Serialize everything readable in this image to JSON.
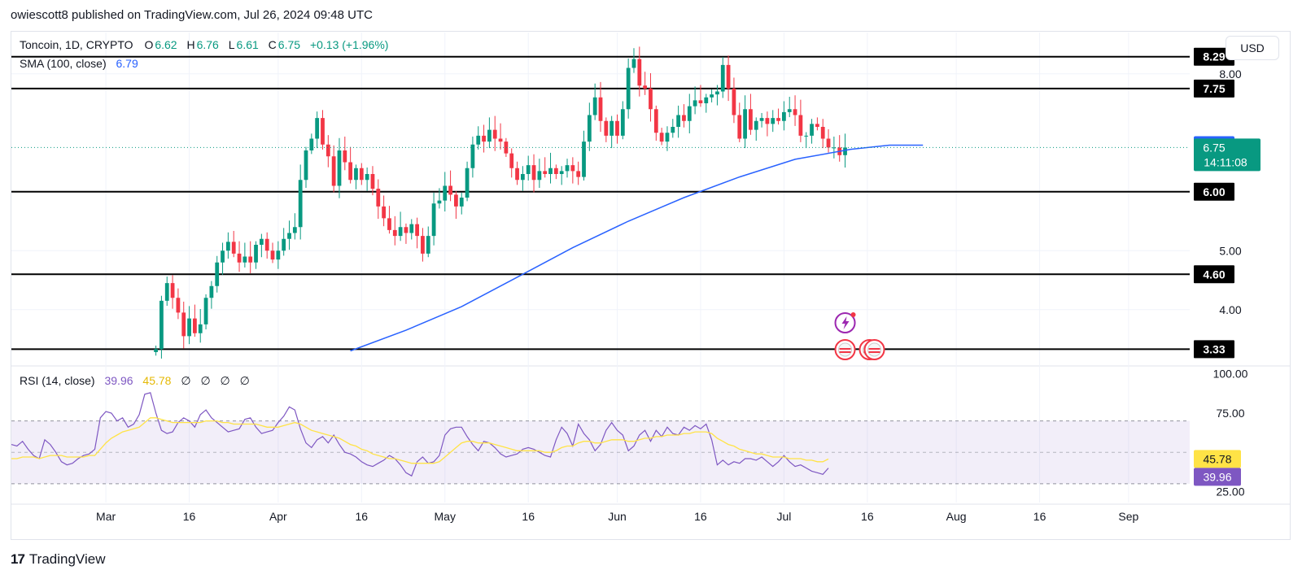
{
  "header": {
    "publish_line": "owiescott8 published on TradingView.com, Jul 26, 2024 09:48 UTC"
  },
  "legend": {
    "symbol": "Toncoin, 1D, CRYPTO",
    "o_label": "O",
    "o_value": "6.62",
    "h_label": "H",
    "h_value": "6.76",
    "l_label": "L",
    "l_value": "6.61",
    "c_label": "C",
    "c_value": "6.75",
    "change": "+0.13 (+1.96%)",
    "sma_label": "SMA (100, close)",
    "sma_value": "6.79",
    "rsi_label": "RSI (14, close)",
    "rsi_value": "39.96",
    "rsi_ma_value": "45.78",
    "rsi_empty": [
      "∅",
      "∅",
      "∅",
      "∅"
    ]
  },
  "currency_button": "USD",
  "footer": {
    "brand_logo": "17",
    "brand_name": "TradingView"
  },
  "colors": {
    "up": "#089981",
    "down": "#f23645",
    "sma": "#2962ff",
    "rsi": "#7e57c2",
    "rsi_ma": "#ffe346",
    "level": "#000000",
    "grid": "#f0f3fa"
  },
  "chart_data": [
    {
      "type": "candlestick",
      "title": "Toncoin, 1D, CRYPTO",
      "x_range": [
        "2024-02-13",
        "2024-09-12"
      ],
      "x_ticks": [
        {
          "date": "2024-03-01",
          "label": "Mar"
        },
        {
          "date": "2024-03-16",
          "label": "16"
        },
        {
          "date": "2024-04-01",
          "label": "Apr"
        },
        {
          "date": "2024-04-16",
          "label": "16"
        },
        {
          "date": "2024-05-01",
          "label": "May"
        },
        {
          "date": "2024-05-16",
          "label": "16"
        },
        {
          "date": "2024-06-01",
          "label": "Jun"
        },
        {
          "date": "2024-06-16",
          "label": "16"
        },
        {
          "date": "2024-07-01",
          "label": "Jul"
        },
        {
          "date": "2024-07-16",
          "label": "16"
        },
        {
          "date": "2024-08-01",
          "label": "Aug"
        },
        {
          "date": "2024-08-16",
          "label": "16"
        },
        {
          "date": "2024-09-01",
          "label": "Sep"
        }
      ],
      "y_ticks": [
        "4.00",
        "5.00",
        "8.00"
      ],
      "ylim": [
        3.1,
        8.7
      ],
      "horizontal_levels": [
        "8.29",
        "7.75",
        "6.00",
        "4.60",
        "3.33"
      ],
      "price_labels": {
        "sma": "6.79",
        "last": "6.75",
        "countdown": "14:11:08"
      },
      "start_date": "2024-03-10",
      "closes": [
        3.33,
        4.15,
        4.45,
        4.2,
        3.95,
        3.55,
        3.85,
        3.6,
        3.75,
        4.2,
        4.4,
        4.8,
        5.0,
        5.15,
        4.95,
        4.8,
        4.9,
        4.8,
        5.1,
        5.2,
        5.0,
        4.85,
        5.0,
        5.2,
        5.3,
        5.4,
        6.2,
        6.7,
        6.9,
        7.25,
        6.8,
        6.6,
        6.1,
        6.7,
        6.5,
        6.2,
        6.4,
        6.2,
        6.3,
        6.05,
        5.75,
        5.55,
        5.35,
        5.25,
        5.4,
        5.3,
        5.45,
        5.25,
        4.95,
        5.25,
        5.8,
        5.85,
        6.1,
        5.95,
        5.75,
        5.9,
        6.4,
        6.8,
        6.95,
        6.85,
        7.05,
        6.9,
        6.85,
        6.65,
        6.4,
        6.2,
        6.3,
        6.45,
        6.2,
        6.35,
        6.3,
        6.4,
        6.3,
        6.35,
        6.45,
        6.35,
        6.25,
        6.85,
        7.3,
        7.6,
        7.2,
        6.95,
        7.2,
        6.95,
        7.4,
        8.1,
        8.25,
        7.8,
        7.75,
        7.4,
        7.0,
        6.85,
        7.0,
        7.1,
        7.3,
        7.2,
        7.45,
        7.55,
        7.5,
        7.6,
        7.65,
        7.7,
        8.15,
        7.75,
        7.3,
        6.9,
        7.4,
        7.05,
        7.2,
        7.25,
        7.15,
        7.25,
        7.2,
        7.35,
        7.4,
        7.3,
        6.95,
        6.95,
        7.15,
        7.1,
        6.9,
        6.75,
        6.75,
        6.62,
        6.75
      ]
    },
    {
      "type": "line",
      "title": "SMA (100, close)",
      "x": [
        "2024-04-14",
        "2024-04-24",
        "2024-05-04",
        "2024-05-14",
        "2024-05-24",
        "2024-06-03",
        "2024-06-13",
        "2024-06-23",
        "2024-07-03",
        "2024-07-13",
        "2024-07-20",
        "2024-07-26"
      ],
      "series": [
        {
          "name": "SMA (100, close)",
          "values": [
            3.3,
            3.65,
            4.05,
            4.55,
            5.05,
            5.5,
            5.9,
            6.25,
            6.55,
            6.72,
            6.79,
            6.79
          ]
        }
      ]
    },
    {
      "type": "line",
      "title": "RSI (14, close)",
      "ylim": [
        18,
        104
      ],
      "y_ticks": [
        "100.00",
        "75.00",
        "25.00"
      ],
      "bands": {
        "upper": 70,
        "middle": 50,
        "lower": 30
      },
      "value_labels": {
        "rsi": "39.96",
        "rsi_ma": "45.78"
      },
      "start_date": "2024-02-13",
      "series": [
        {
          "name": "RSI",
          "values": [
            55,
            54,
            57,
            52,
            48,
            46,
            58,
            55,
            50,
            44,
            42,
            43,
            46,
            48,
            49,
            52,
            72,
            76,
            75,
            70,
            72,
            66,
            68,
            74,
            87,
            88,
            75,
            64,
            62,
            63,
            69,
            72,
            70,
            66,
            74,
            77,
            72,
            69,
            66,
            63,
            64,
            65,
            71,
            72,
            66,
            62,
            63,
            64,
            69,
            73,
            79,
            77,
            65,
            56,
            53,
            58,
            60,
            56,
            61,
            55,
            50,
            49,
            47,
            44,
            42,
            41,
            43,
            45,
            48,
            46,
            42,
            37,
            35,
            44,
            47,
            43,
            44,
            48,
            61,
            65,
            66,
            66,
            60,
            55,
            51,
            57,
            56,
            53,
            49,
            47,
            48,
            49,
            52,
            53,
            52,
            50,
            48,
            47,
            58,
            66,
            62,
            54,
            68,
            62,
            58,
            51,
            55,
            64,
            69,
            64,
            61,
            51,
            54,
            61,
            64,
            57,
            64,
            60,
            66,
            62,
            61,
            66,
            64,
            67,
            65,
            68,
            58,
            42,
            45,
            42,
            44,
            43,
            46,
            46,
            45,
            47,
            44,
            41,
            44,
            48,
            44,
            41,
            42,
            40,
            38,
            37,
            36,
            39.96
          ]
        },
        {
          "name": "RSI-based MA",
          "values": [
            46,
            46,
            47,
            47,
            47,
            46,
            47,
            48,
            48,
            48,
            47,
            47,
            47,
            47,
            48,
            48,
            52,
            56,
            59,
            61,
            63,
            64,
            65,
            66,
            69,
            72,
            72,
            71,
            70,
            69,
            69,
            69,
            69,
            69,
            69,
            70,
            70,
            70,
            69,
            69,
            68,
            68,
            68,
            68,
            68,
            67,
            66,
            66,
            66,
            67,
            68,
            69,
            68,
            66,
            64,
            63,
            62,
            61,
            60,
            59,
            57,
            55,
            54,
            52,
            51,
            49,
            48,
            47,
            46,
            46,
            45,
            44,
            43,
            43,
            43,
            43,
            43,
            44,
            47,
            50,
            53,
            56,
            57,
            57,
            56,
            56,
            56,
            55,
            54,
            53,
            52,
            51,
            51,
            51,
            51,
            51,
            50,
            50,
            51,
            53,
            54,
            54,
            56,
            57,
            57,
            56,
            56,
            57,
            58,
            58,
            58,
            57,
            57,
            58,
            59,
            59,
            60,
            60,
            61,
            61,
            61,
            62,
            62,
            63,
            63,
            63,
            62,
            59,
            57,
            55,
            54,
            52,
            51,
            50,
            49,
            49,
            48,
            47,
            47,
            47,
            46,
            46,
            46,
            45,
            45,
            44,
            44,
            45.78
          ]
        }
      ]
    }
  ]
}
